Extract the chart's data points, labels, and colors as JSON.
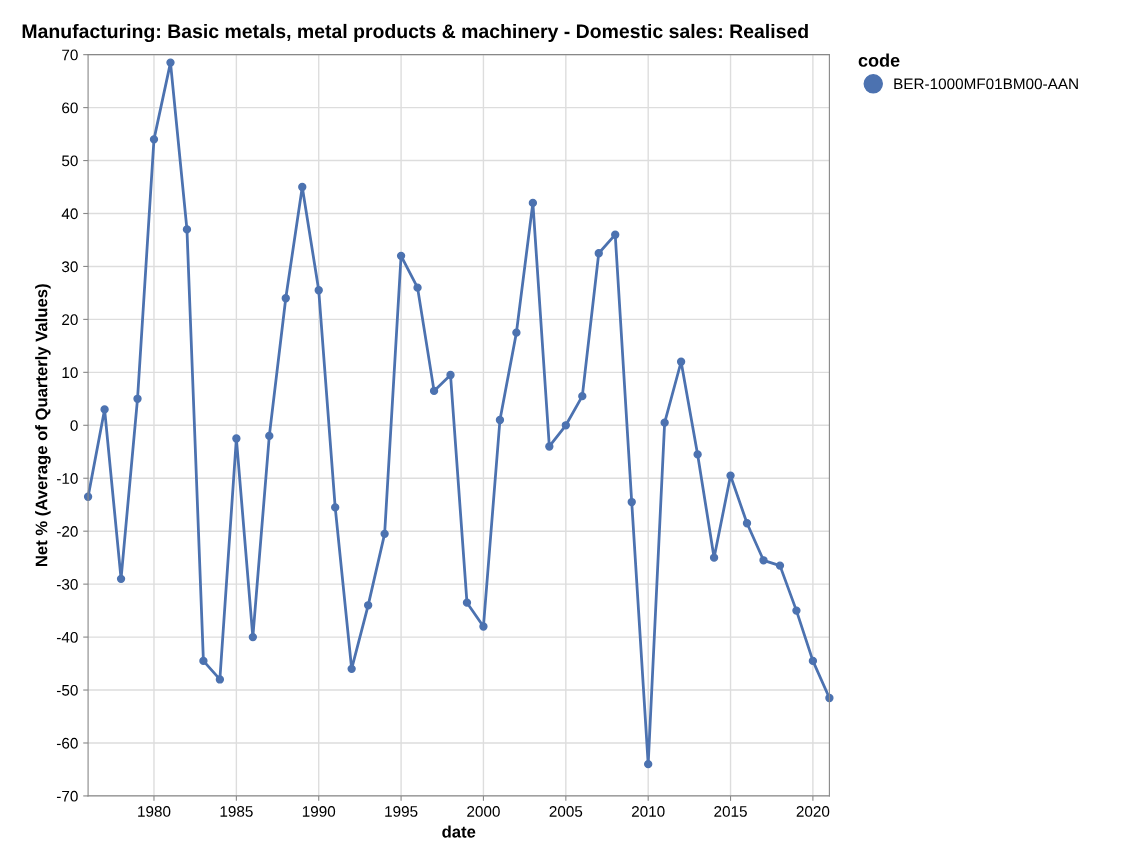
{
  "chart_data": {
    "type": "line",
    "title": "Manufacturing: Basic metals, metal products & machinery - Domestic sales: Realised",
    "xlabel": "date",
    "ylabel": "Net % (Average of Quarterly Values)",
    "legend_title": "code",
    "x": [
      "1976",
      "1977",
      "1978",
      "1979",
      "1980",
      "1981",
      "1982",
      "1983",
      "1984",
      "1985",
      "1986",
      "1987",
      "1988",
      "1989",
      "1990",
      "1991",
      "1992",
      "1993",
      "1994",
      "1995",
      "1996",
      "1997",
      "1998",
      "1999",
      "2000",
      "2001",
      "2002",
      "2003",
      "2004",
      "2005",
      "2006",
      "2007",
      "2008",
      "2009",
      "2010",
      "2011",
      "2012",
      "2013",
      "2014",
      "2015",
      "2016",
      "2017",
      "2018",
      "2019",
      "2020",
      "2021"
    ],
    "series": [
      {
        "name": "BER-1000MF01BM00-AAN",
        "color": "#4c72b0",
        "values": [
          -13.5,
          3,
          -29,
          5,
          54,
          68.5,
          37,
          -44.5,
          -48,
          -2.5,
          -40,
          -2,
          24,
          45,
          25.5,
          -15.5,
          -46,
          -34,
          -20.5,
          32,
          26,
          6.5,
          9.5,
          -33.5,
          -38,
          1,
          17.5,
          42,
          -4,
          0,
          5.5,
          32.5,
          36,
          -14.5,
          -64,
          0.5,
          12,
          -5.5,
          -25,
          -9.5,
          -18.5,
          -25.5,
          -26.5,
          -35,
          -44.5,
          -51.5
        ]
      }
    ],
    "xlim": [
      "1976",
      "2021"
    ],
    "xticks": [
      {
        "value": "1980",
        "label": "1980"
      },
      {
        "value": "1985",
        "label": "1985"
      },
      {
        "value": "1990",
        "label": "1990"
      },
      {
        "value": "1995",
        "label": "1995"
      },
      {
        "value": "2000",
        "label": "2000"
      },
      {
        "value": "2005",
        "label": "2005"
      },
      {
        "value": "2010",
        "label": "2010"
      },
      {
        "value": "2015",
        "label": "2015"
      },
      {
        "value": "2020",
        "label": "2020"
      }
    ],
    "ylim": [
      -70,
      70
    ],
    "yticks": [
      -70,
      -60,
      -50,
      -40,
      -30,
      -20,
      -10,
      0,
      10,
      20,
      30,
      40,
      50,
      60,
      70
    ],
    "grid": true,
    "legend": "top right",
    "marker": "circle",
    "line_style": "solid"
  }
}
